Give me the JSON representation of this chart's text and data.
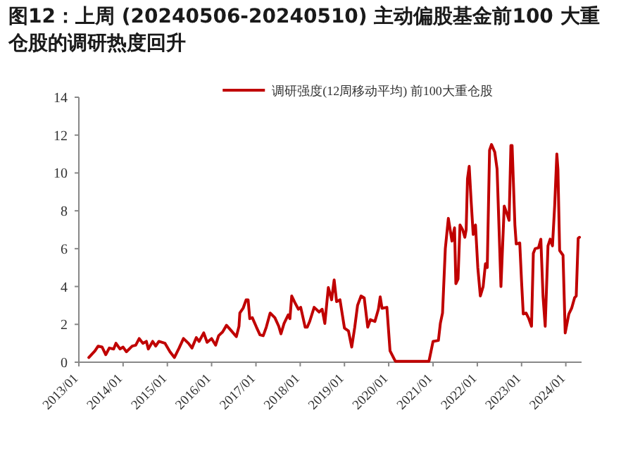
{
  "chart_data": {
    "type": "line",
    "title": "图12：上周 (20240506-20240510) 主动偏股基金前100 大重仓股的调研热度回升",
    "xlim": [
      "2013-01-01",
      "2024-05-10"
    ],
    "xticks": [
      {
        "value": "2013-01",
        "label": "2013/01"
      },
      {
        "value": "2014-01",
        "label": "2014/01"
      },
      {
        "value": "2015-01",
        "label": "2015/01"
      },
      {
        "value": "2016-01",
        "label": "2016/01"
      },
      {
        "value": "2017-01",
        "label": "2017/01"
      },
      {
        "value": "2018-01",
        "label": "2018/01"
      },
      {
        "value": "2019-01",
        "label": "2019/01"
      },
      {
        "value": "2020-01",
        "label": "2020/01"
      },
      {
        "value": "2021-01",
        "label": "2021/01"
      },
      {
        "value": "2022-01",
        "label": "2022/01"
      },
      {
        "value": "2023-01",
        "label": "2023/01"
      },
      {
        "value": "2024-01",
        "label": "2024/01"
      }
    ],
    "ylim": [
      0,
      14
    ],
    "yticks": [
      0,
      2,
      4,
      6,
      8,
      10,
      12,
      14
    ],
    "grid": false,
    "legend": "top",
    "marker": "none",
    "line_style": "solid",
    "series": [
      {
        "name": "调研强度(12周移动平均) 前100大重仓股",
        "color": "#c00000",
        "x": [
          "2013-03-24",
          "2013-05-14",
          "2013-06-09",
          "2013-07-12",
          "2013-08-11",
          "2013-09-09",
          "2013-10-15",
          "2013-11-03",
          "2013-12-06",
          "2014-01-01",
          "2014-01-28",
          "2014-03-17",
          "2014-04-15",
          "2014-05-14",
          "2014-06-13",
          "2014-07-12",
          "2014-07-28",
          "2014-09-02",
          "2014-09-27",
          "2014-10-23",
          "2014-12-13",
          "2015-01-23",
          "2015-02-28",
          "2015-04-08",
          "2015-05-14",
          "2015-06-24",
          "2015-07-23",
          "2015-08-28",
          "2015-09-20",
          "2015-10-28",
          "2015-11-25",
          "2016-01-01",
          "2016-02-03",
          "2016-02-28",
          "2016-04-01",
          "2016-05-03",
          "2016-06-13",
          "2016-07-23",
          "2016-08-14",
          "2016-08-21",
          "2016-09-17",
          "2016-10-12",
          "2016-10-28",
          "2016-11-11",
          "2016-12-02",
          "2017-01-05",
          "2017-02-03",
          "2017-03-02",
          "2017-03-27",
          "2017-04-28",
          "2017-06-06",
          "2017-07-08",
          "2017-07-26",
          "2017-08-21",
          "2017-09-24",
          "2017-10-08",
          "2017-10-23",
          "2017-11-18",
          "2017-12-17",
          "2018-01-05",
          "2018-02-11",
          "2018-02-28",
          "2018-03-20",
          "2018-04-26",
          "2018-06-06",
          "2018-07-01",
          "2018-07-23",
          "2018-08-21",
          "2018-09-17",
          "2018-10-08",
          "2018-10-28",
          "2018-11-25",
          "2019-01-01",
          "2019-02-03",
          "2019-03-02",
          "2019-03-27",
          "2019-04-19",
          "2019-05-18",
          "2019-06-13",
          "2019-07-12",
          "2019-08-03",
          "2019-09-09",
          "2019-10-08",
          "2019-10-23",
          "2019-11-07",
          "2019-12-17",
          "2020-01-12",
          "2020-02-25",
          "2020-11-28",
          "2021-01-01",
          "2021-02-14",
          "2021-03-02",
          "2021-03-20",
          "2021-04-12",
          "2021-05-07",
          "2021-06-06",
          "2021-06-27",
          "2021-07-08",
          "2021-07-26",
          "2021-08-11",
          "2021-09-02",
          "2021-09-20",
          "2021-10-01",
          "2021-10-12",
          "2021-10-26",
          "2021-11-11",
          "2021-11-28",
          "2021-12-17",
          "2022-01-05",
          "2022-01-26",
          "2022-02-18",
          "2022-03-09",
          "2022-03-24",
          "2022-04-12",
          "2022-04-28",
          "2022-05-25",
          "2022-06-13",
          "2022-06-27",
          "2022-07-15",
          "2022-08-11",
          "2022-09-02",
          "2022-09-20",
          "2022-10-05",
          "2022-10-15",
          "2022-11-07",
          "2022-11-18",
          "2022-12-17",
          "2023-01-01",
          "2023-01-15",
          "2023-02-07",
          "2023-03-02",
          "2023-03-24",
          "2023-04-08",
          "2023-04-23",
          "2023-05-21",
          "2023-06-09",
          "2023-06-27",
          "2023-07-15",
          "2023-08-07",
          "2023-08-25",
          "2023-09-13",
          "2023-10-01",
          "2023-10-19",
          "2023-10-28",
          "2023-11-11",
          "2023-12-09",
          "2023-12-27",
          "2024-01-26",
          "2024-02-18",
          "2024-03-13",
          "2024-03-27",
          "2024-04-12",
          "2024-04-23"
        ],
        "values": [
          0.25,
          0.6,
          0.85,
          0.8,
          0.4,
          0.75,
          0.7,
          1.0,
          0.7,
          0.8,
          0.55,
          0.85,
          0.9,
          1.25,
          1.0,
          1.1,
          0.7,
          1.1,
          0.85,
          1.1,
          1.0,
          0.55,
          0.25,
          0.75,
          1.25,
          1.0,
          0.75,
          1.3,
          1.1,
          1.55,
          1.05,
          1.25,
          0.9,
          1.4,
          1.6,
          1.95,
          1.65,
          1.35,
          1.9,
          2.6,
          2.85,
          3.3,
          3.3,
          2.3,
          2.35,
          1.85,
          1.45,
          1.4,
          1.85,
          2.6,
          2.35,
          1.9,
          1.5,
          2.05,
          2.5,
          2.3,
          3.5,
          3.15,
          2.8,
          2.9,
          1.85,
          1.85,
          2.15,
          2.9,
          2.65,
          2.8,
          2.05,
          3.95,
          3.3,
          4.35,
          3.2,
          3.3,
          1.8,
          1.65,
          0.8,
          1.85,
          3.0,
          3.5,
          3.4,
          1.85,
          2.25,
          2.15,
          2.8,
          3.45,
          2.85,
          2.9,
          0.6,
          0.05,
          0.05,
          1.1,
          1.15,
          2.05,
          2.6,
          6.0,
          7.6,
          6.4,
          7.1,
          4.15,
          4.4,
          7.25,
          7.0,
          6.6,
          7.0,
          9.7,
          10.35,
          8.5,
          6.75,
          7.25,
          5.0,
          3.5,
          4.0,
          5.2,
          5.0,
          11.2,
          11.5,
          11.1,
          10.2,
          7.5,
          4.0,
          8.25,
          7.85,
          7.5,
          11.45,
          11.45,
          7.25,
          6.25,
          6.3,
          4.25,
          2.55,
          2.6,
          2.3,
          1.9,
          5.75,
          6.0,
          6.05,
          6.5,
          3.5,
          1.9,
          6.15,
          6.5,
          6.15,
          8.25,
          11.0,
          10.2,
          5.9,
          5.65,
          1.55,
          2.55,
          2.85,
          3.4,
          3.5,
          6.55,
          6.6
        ]
      }
    ]
  }
}
